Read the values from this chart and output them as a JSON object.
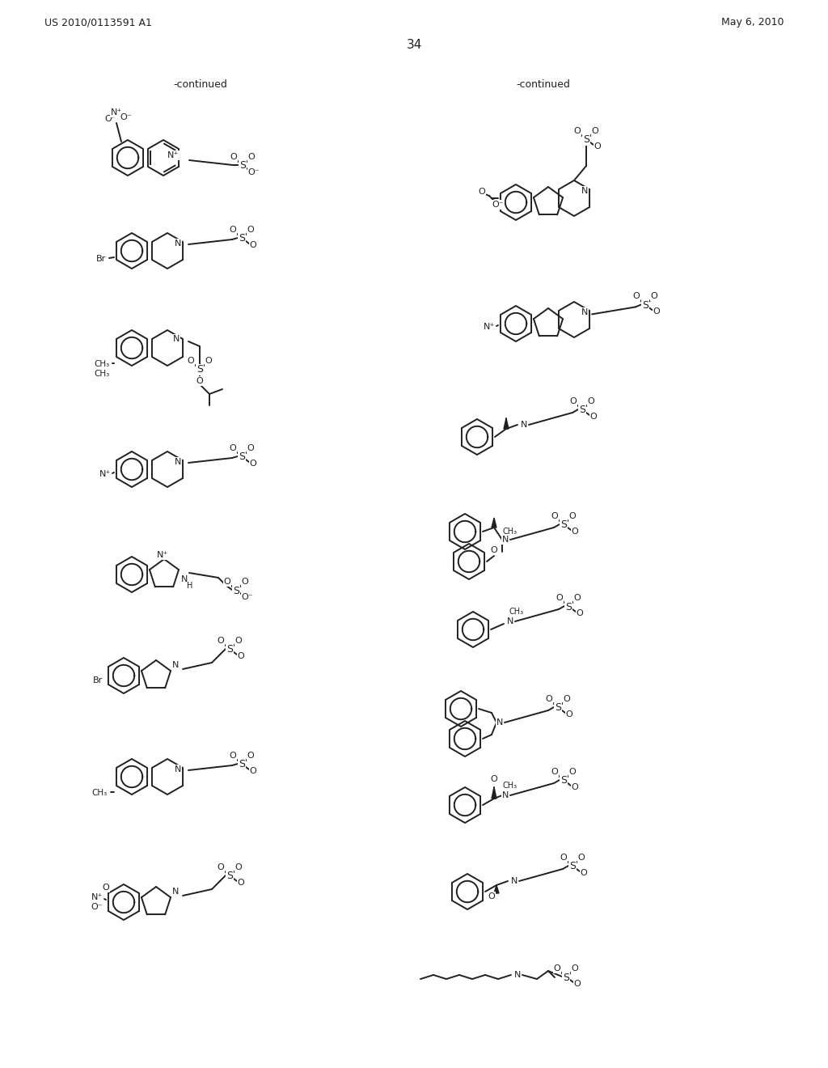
{
  "page_header_left": "US 2010/0113591 A1",
  "page_header_right": "May 6, 2010",
  "page_number": "34",
  "continued_left": "-continued",
  "continued_right": "-continued",
  "background_color": "#ffffff",
  "text_color": "#231f20",
  "line_color": "#231f20",
  "figsize": [
    10.24,
    13.2
  ],
  "dpi": 100
}
